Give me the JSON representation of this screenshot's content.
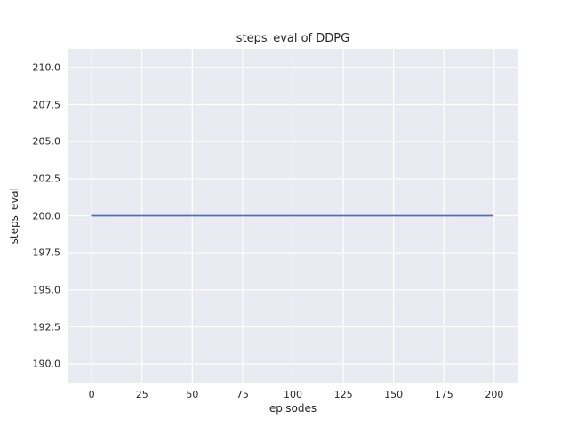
{
  "chart_data": {
    "type": "line",
    "title": "steps_eval of DDPG",
    "xlabel": "episodes",
    "ylabel": "steps_eval",
    "xlim": [
      -12,
      212
    ],
    "ylim": [
      188.75,
      211.25
    ],
    "grid": true,
    "legend": false,
    "xticks": {
      "values": [
        0,
        25,
        50,
        75,
        100,
        125,
        150,
        175,
        200
      ],
      "labels": [
        "0",
        "25",
        "50",
        "75",
        "100",
        "125",
        "150",
        "175",
        "200"
      ]
    },
    "yticks": {
      "values": [
        190.0,
        192.5,
        195.0,
        197.5,
        200.0,
        202.5,
        205.0,
        207.5,
        210.0
      ],
      "labels": [
        "190.0",
        "192.5",
        "195.0",
        "197.5",
        "200.0",
        "202.5",
        "205.0",
        "207.5",
        "210.0"
      ]
    },
    "series": [
      {
        "name": "steps_eval",
        "x": [
          0,
          199
        ],
        "y": [
          200,
          200
        ],
        "color": "#4c72b0"
      }
    ],
    "colors": {
      "figure_bg": "#ffffff",
      "axes_bg": "#eaeaf2",
      "grid": "#ffffff",
      "text": "#262626"
    }
  }
}
